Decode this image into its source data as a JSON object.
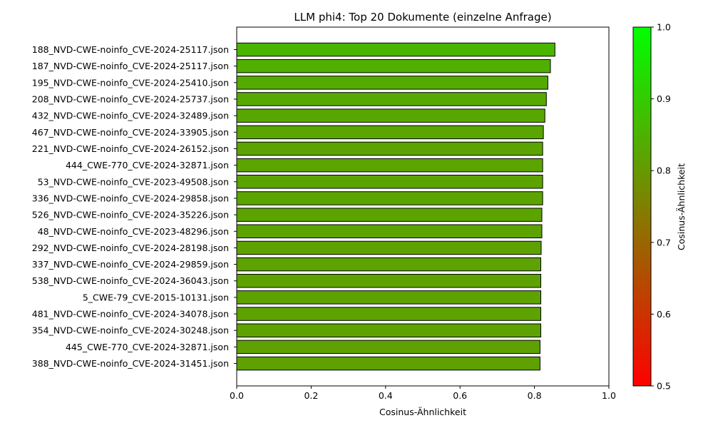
{
  "chart_data": {
    "type": "bar",
    "orientation": "horizontal",
    "title": "LLM phi4: Top 20 Dokumente (einzelne Anfrage)",
    "xlabel": "Cosinus-Ähnlichkeit",
    "ylabel": "",
    "xlim": [
      0.0,
      1.0
    ],
    "x_ticks": [
      "0.0",
      "0.2",
      "0.4",
      "0.6",
      "0.8",
      "1.0"
    ],
    "grid": false,
    "categories": [
      "188_NVD-CWE-noinfo_CVE-2024-25117.json",
      "187_NVD-CWE-noinfo_CVE-2024-25117.json",
      "195_NVD-CWE-noinfo_CVE-2024-25410.json",
      "208_NVD-CWE-noinfo_CVE-2024-25737.json",
      "432_NVD-CWE-noinfo_CVE-2024-32489.json",
      "467_NVD-CWE-noinfo_CVE-2024-33905.json",
      "221_NVD-CWE-noinfo_CVE-2024-26152.json",
      "444_CWE-770_CVE-2024-32871.json",
      "53_NVD-CWE-noinfo_CVE-2023-49508.json",
      "336_NVD-CWE-noinfo_CVE-2024-29858.json",
      "526_NVD-CWE-noinfo_CVE-2024-35226.json",
      "48_NVD-CWE-noinfo_CVE-2023-48296.json",
      "292_NVD-CWE-noinfo_CVE-2024-28198.json",
      "337_NVD-CWE-noinfo_CVE-2024-29859.json",
      "538_NVD-CWE-noinfo_CVE-2024-36043.json",
      "5_CWE-79_CVE-2015-10131.json",
      "481_NVD-CWE-noinfo_CVE-2024-34078.json",
      "354_NVD-CWE-noinfo_CVE-2024-30248.json",
      "445_CWE-770_CVE-2024-32871.json",
      "388_NVD-CWE-noinfo_CVE-2024-31451.json"
    ],
    "values": [
      0.855,
      0.843,
      0.836,
      0.832,
      0.828,
      0.824,
      0.822,
      0.822,
      0.822,
      0.822,
      0.82,
      0.82,
      0.818,
      0.817,
      0.817,
      0.817,
      0.817,
      0.817,
      0.815,
      0.815
    ],
    "colorbar": {
      "label": "Cosinus-Ähnlichkeit",
      "range": [
        0.5,
        1.0
      ],
      "ticks": [
        "0.5",
        "0.6",
        "0.7",
        "0.8",
        "0.9",
        "1.0"
      ],
      "color_low": "#ff0000",
      "color_high": "#00ff00"
    },
    "bar_edge_color": "#000000"
  }
}
